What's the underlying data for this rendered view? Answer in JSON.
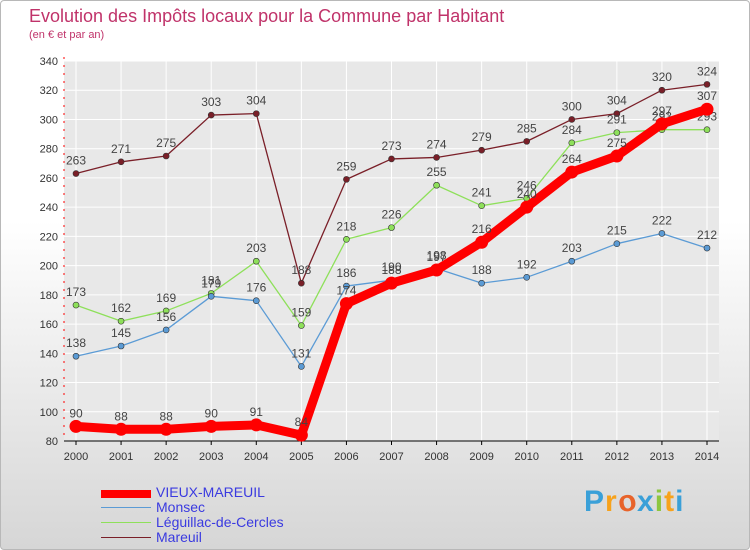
{
  "colors": {
    "title": "#c0336a",
    "legend_text": "#3a3ae0",
    "grid": "#ffffff",
    "axis_red": "#ff0000",
    "label": "#444444"
  },
  "chart_data": {
    "type": "line",
    "title": "Evolution des Impôts locaux pour la Commune par Habitant",
    "subtitle": "(en € et par an)",
    "xlabel": "",
    "ylabel": "",
    "x": [
      2000,
      2001,
      2002,
      2003,
      2004,
      2005,
      2006,
      2007,
      2008,
      2009,
      2010,
      2011,
      2012,
      2013,
      2014
    ],
    "ylim": [
      80,
      340
    ],
    "yticks": [
      80,
      100,
      120,
      140,
      160,
      180,
      200,
      220,
      240,
      260,
      280,
      300,
      320,
      340
    ],
    "grid": true,
    "legend_position": "bottom-left",
    "series": [
      {
        "name": "Mareuil",
        "color": "#7a1f28",
        "values": [
          263,
          271,
          275,
          303,
          304,
          188,
          259,
          273,
          274,
          279,
          285,
          300,
          304,
          320,
          324
        ]
      },
      {
        "name": "Léguillac-de-Cercles",
        "color": "#8ee05a",
        "values": [
          173,
          162,
          169,
          181,
          203,
          159,
          218,
          226,
          255,
          241,
          246,
          284,
          291,
          293,
          293
        ]
      },
      {
        "name": "Monsec",
        "color": "#5b9bd5",
        "values": [
          138,
          145,
          156,
          179,
          176,
          131,
          186,
          190,
          198,
          188,
          192,
          203,
          215,
          222,
          212
        ]
      },
      {
        "name": "VIEUX-MAREUIL",
        "color": "#ff0000",
        "values": [
          90,
          88,
          88,
          90,
          91,
          84,
          174,
          188,
          197,
          216,
          240,
          264,
          275,
          297,
          307
        ]
      }
    ],
    "legend": [
      "VIEUX-MAREUIL",
      "Monsec",
      "Léguillac-de-Cercles",
      "Mareuil"
    ]
  },
  "logo": {
    "letters": [
      "P",
      "r",
      "o",
      "x",
      "i",
      "t",
      "i"
    ],
    "colors": [
      "#3aa0d8",
      "#f7a21b",
      "#e8632a",
      "#3aa0d8",
      "#8dc63f",
      "#f7a21b",
      "#3aa0d8"
    ]
  }
}
